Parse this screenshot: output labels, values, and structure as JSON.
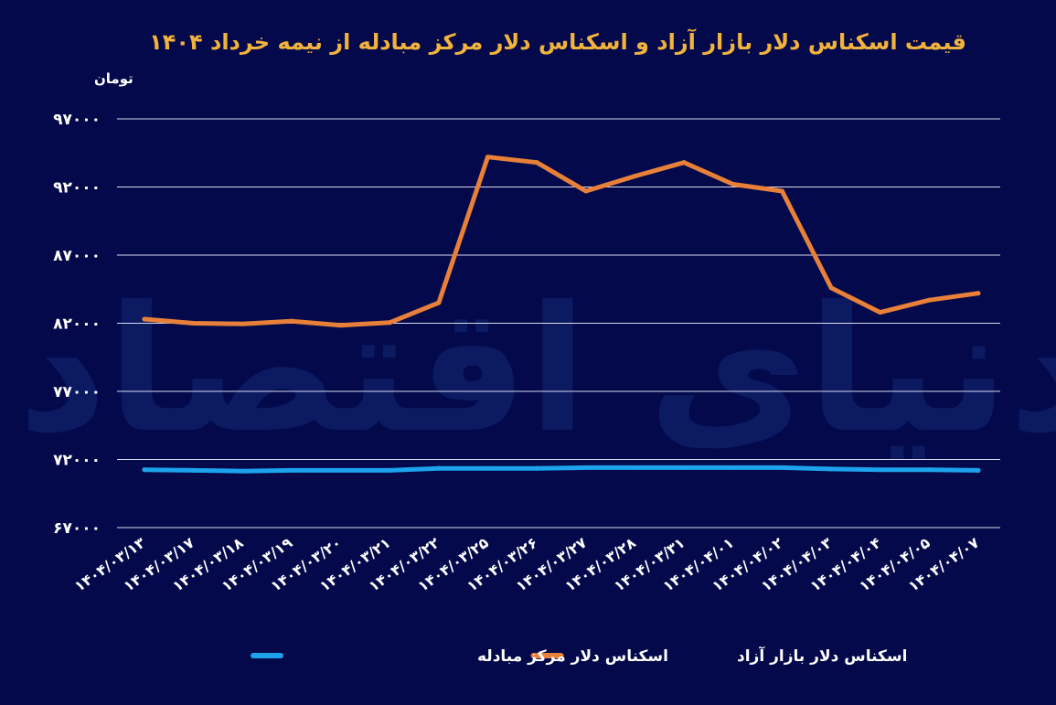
{
  "chart_data": {
    "type": "line",
    "title": "قیمت اسکناس دلار بازار آزاد و اسکناس دلار مرکز مبادله از نیمه خرداد ۱۴۰۴",
    "ylabel": "تومان",
    "xlabel": "",
    "ylim": [
      67000,
      97000
    ],
    "yticks": [
      67000,
      72000,
      77000,
      82000,
      87000,
      92000,
      97000
    ],
    "ytick_labels": [
      "۶۷۰۰۰",
      "۷۲۰۰۰",
      "۷۷۰۰۰",
      "۸۲۰۰۰",
      "۸۷۰۰۰",
      "۹۲۰۰۰",
      "۹۷۰۰۰"
    ],
    "grid": true,
    "legend_position": "bottom-center",
    "categories": [
      "۱۴۰۴/۰۳/۱۳",
      "۱۴۰۴/۰۳/۱۷",
      "۱۴۰۴/۰۳/۱۸",
      "۱۴۰۴/۰۳/۱۹",
      "۱۴۰۴/۰۳/۲۰",
      "۱۴۰۴/۰۳/۲۱",
      "۱۴۰۴/۰۳/۲۲",
      "۱۴۰۴/۰۳/۲۵",
      "۱۴۰۴/۰۳/۲۶",
      "۱۴۰۴/۰۳/۲۷",
      "۱۴۰۴/۰۳/۲۸",
      "۱۴۰۴/۰۳/۳۱",
      "۱۴۰۴/۰۴/۰۱",
      "۱۴۰۴/۰۴/۰۲",
      "۱۴۰۴/۰۴/۰۳",
      "۱۴۰۴/۰۴/۰۴",
      "۱۴۰۴/۰۴/۰۵",
      "۱۴۰۴/۰۴/۰۷"
    ],
    "series": [
      {
        "name": "اسکناس دلار مرکز مبادله",
        "color": "#1ca3ec",
        "values": [
          71250,
          71200,
          71150,
          71200,
          71200,
          71200,
          71350,
          71350,
          71350,
          71400,
          71400,
          71400,
          71400,
          71400,
          71300,
          71250,
          71250,
          71200
        ]
      },
      {
        "name": "اسکناس دلار بازار آزاد",
        "color": "#e8803a",
        "values": [
          82300,
          82000,
          81950,
          82150,
          81850,
          82050,
          83500,
          94200,
          93800,
          91700,
          92800,
          93800,
          92200,
          91700,
          84600,
          82800,
          83700,
          84200
        ]
      }
    ]
  },
  "colors": {
    "background": "#03094a",
    "title": "#f2b33d",
    "grid": "#d9dcf0",
    "text": "#ffffff"
  }
}
